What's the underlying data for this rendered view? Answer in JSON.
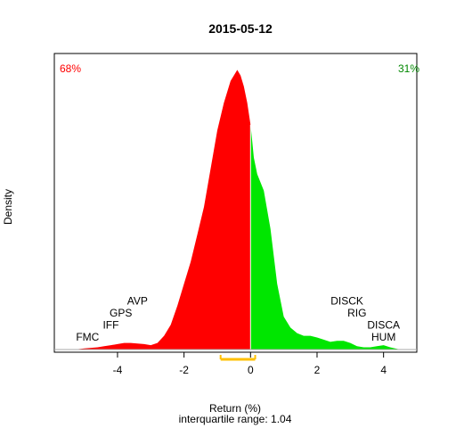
{
  "chart_data": {
    "type": "area",
    "title": "2015-05-12",
    "xlabel": "Return (%)",
    "ylabel": "Density",
    "subtitle": "interquartile range: 1.04",
    "xlim": [
      -5.9,
      5.0
    ],
    "ylim": [
      0,
      0.54
    ],
    "xticks": [
      -4,
      -2,
      0,
      2,
      4
    ],
    "split_at": 0.0,
    "neg_pct_label": "68%",
    "pos_pct_label": "31%",
    "neg_color": "#ff0000",
    "pos_color": "#00e600",
    "iqr": {
      "low": -0.9,
      "high": 0.14,
      "color": "#ffc000"
    },
    "x": [
      -5.3,
      -5.0,
      -4.6,
      -4.4,
      -4.2,
      -4.0,
      -3.8,
      -3.6,
      -3.4,
      -3.2,
      -3.0,
      -2.8,
      -2.6,
      -2.4,
      -2.2,
      -2.0,
      -1.8,
      -1.6,
      -1.4,
      -1.2,
      -1.0,
      -0.8,
      -0.6,
      -0.4,
      -0.3,
      -0.2,
      -0.1,
      0.0,
      0.05,
      0.1,
      0.2,
      0.4,
      0.6,
      0.8,
      1.0,
      1.2,
      1.4,
      1.6,
      1.8,
      2.0,
      2.2,
      2.4,
      2.6,
      2.8,
      3.0,
      3.2,
      3.4,
      3.6,
      3.8,
      4.0,
      4.2,
      4.5
    ],
    "density": [
      0.0,
      0.002,
      0.004,
      0.006,
      0.008,
      0.01,
      0.012,
      0.012,
      0.011,
      0.01,
      0.008,
      0.012,
      0.025,
      0.045,
      0.08,
      0.12,
      0.16,
      0.21,
      0.26,
      0.33,
      0.4,
      0.45,
      0.49,
      0.51,
      0.5,
      0.48,
      0.45,
      0.41,
      0.38,
      0.35,
      0.32,
      0.29,
      0.22,
      0.12,
      0.06,
      0.04,
      0.03,
      0.025,
      0.025,
      0.022,
      0.018,
      0.014,
      0.016,
      0.016,
      0.012,
      0.006,
      0.004,
      0.004,
      0.006,
      0.008,
      0.004,
      0.0
    ],
    "labels_left": [
      {
        "text": "FMC",
        "x": -4.9,
        "y": 0.016
      },
      {
        "text": "IFF",
        "x": -4.2,
        "y": 0.038
      },
      {
        "text": "GPS",
        "x": -3.9,
        "y": 0.06
      },
      {
        "text": "AVP",
        "x": -3.4,
        "y": 0.082
      }
    ],
    "labels_right": [
      {
        "text": "DISCK",
        "x": 2.9,
        "y": 0.082
      },
      {
        "text": "RIG",
        "x": 3.2,
        "y": 0.06
      },
      {
        "text": "DISCA",
        "x": 4.0,
        "y": 0.038
      },
      {
        "text": "HUM",
        "x": 4.0,
        "y": 0.016
      }
    ]
  }
}
